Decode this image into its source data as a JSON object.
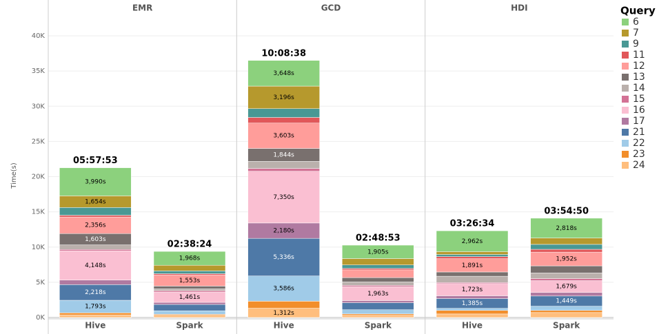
{
  "chart_data": {
    "type": "bar",
    "stacked": true,
    "ylabel": "Time(s)",
    "legend_title": "Query",
    "legend_position": "right",
    "grid": true,
    "ylim": [
      0,
      44600
    ],
    "yticks": [
      {
        "value": 0,
        "label": "0K"
      },
      {
        "value": 5000,
        "label": "5K"
      },
      {
        "value": 10000,
        "label": "10K"
      },
      {
        "value": 15000,
        "label": "15K"
      },
      {
        "value": 20000,
        "label": "20K"
      },
      {
        "value": 25000,
        "label": "25K"
      },
      {
        "value": 30000,
        "label": "30K"
      },
      {
        "value": 35000,
        "label": "35K"
      },
      {
        "value": 40000,
        "label": "40K"
      }
    ],
    "series": [
      {
        "name": "6",
        "color": "#8cd17d"
      },
      {
        "name": "7",
        "color": "#b6992d"
      },
      {
        "name": "9",
        "color": "#499894"
      },
      {
        "name": "11",
        "color": "#e15759"
      },
      {
        "name": "12",
        "color": "#ff9d9a"
      },
      {
        "name": "13",
        "color": "#79706e"
      },
      {
        "name": "14",
        "color": "#bab0ac"
      },
      {
        "name": "15",
        "color": "#d37295"
      },
      {
        "name": "16",
        "color": "#fabfd2"
      },
      {
        "name": "17",
        "color": "#b07aa1"
      },
      {
        "name": "21",
        "color": "#4e79a7"
      },
      {
        "name": "22",
        "color": "#a0cbe8"
      },
      {
        "name": "23",
        "color": "#f28e2b"
      },
      {
        "name": "24",
        "color": "#ffbe7d"
      }
    ],
    "facets": [
      {
        "title": "EMR",
        "categories": [
          "Hive",
          "Spark"
        ],
        "totals": [
          "05:57:53",
          "02:38:24"
        ],
        "series": [
          {
            "values": [
              3990,
              1968
            ],
            "value_labels": [
              "3,990s",
              "1,968s"
            ]
          },
          {
            "values": [
              1654,
              800
            ],
            "value_labels": [
              "1,654s",
              null
            ]
          },
          {
            "values": [
              1100,
              400
            ],
            "value_labels": [
              null,
              null
            ]
          },
          {
            "values": [
              250,
              200
            ],
            "value_labels": [
              null,
              null
            ]
          },
          {
            "values": [
              2356,
              1553
            ],
            "value_labels": [
              "2,356s",
              "1,553s"
            ]
          },
          {
            "values": [
              1603,
              400
            ],
            "value_labels": [
              "1,603s",
              null
            ]
          },
          {
            "values": [
              650,
              250
            ],
            "value_labels": [
              null,
              null
            ]
          },
          {
            "values": [
              200,
              200
            ],
            "value_labels": [
              null,
              null
            ]
          },
          {
            "values": [
              4148,
              1461
            ],
            "value_labels": [
              "4,148s",
              "1,461s"
            ]
          },
          {
            "values": [
              650,
              300
            ],
            "value_labels": [
              null,
              null
            ]
          },
          {
            "values": [
              2218,
              900
            ],
            "value_labels": [
              "2,218s",
              null
            ]
          },
          {
            "values": [
              1793,
              500
            ],
            "value_labels": [
              "1,793s",
              null
            ]
          },
          {
            "values": [
              300,
              150
            ],
            "value_labels": [
              null,
              null
            ]
          },
          {
            "values": [
              350,
              300
            ],
            "value_labels": [
              null,
              null
            ]
          }
        ]
      },
      {
        "title": "GCD",
        "categories": [
          "Hive",
          "Spark"
        ],
        "totals": [
          "10:08:38",
          "02:48:53"
        ],
        "series": [
          {
            "values": [
              3648,
              1905
            ],
            "value_labels": [
              "3,648s",
              "1,905s"
            ]
          },
          {
            "values": [
              3196,
              900
            ],
            "value_labels": [
              "3,196s",
              null
            ]
          },
          {
            "values": [
              1250,
              500
            ],
            "value_labels": [
              null,
              null
            ]
          },
          {
            "values": [
              800,
              200
            ],
            "value_labels": [
              null,
              null
            ]
          },
          {
            "values": [
              3603,
              1100
            ],
            "value_labels": [
              "3,603s",
              null
            ]
          },
          {
            "values": [
              1844,
              600
            ],
            "value_labels": [
              "1,844s",
              null
            ]
          },
          {
            "values": [
              1000,
              500
            ],
            "value_labels": [
              null,
              null
            ]
          },
          {
            "values": [
              400,
              200
            ],
            "value_labels": [
              null,
              null
            ]
          },
          {
            "values": [
              7350,
              1963
            ],
            "value_labels": [
              "7,350s",
              "1,963s"
            ]
          },
          {
            "values": [
              2180,
              300
            ],
            "value_labels": [
              "2,180s",
              null
            ]
          },
          {
            "values": [
              5336,
              1000
            ],
            "value_labels": [
              "5,336s",
              null
            ]
          },
          {
            "values": [
              3586,
              600
            ],
            "value_labels": [
              "3,586s",
              null
            ]
          },
          {
            "values": [
              1000,
              200
            ],
            "value_labels": [
              null,
              null
            ]
          },
          {
            "values": [
              1312,
              300
            ],
            "value_labels": [
              "1,312s",
              null
            ]
          }
        ]
      },
      {
        "title": "HDI",
        "categories": [
          "Hive",
          "Spark"
        ],
        "totals": [
          "03:26:34",
          "03:54:50"
        ],
        "series": [
          {
            "values": [
              2962,
              2818
            ],
            "value_labels": [
              "2,962s",
              "2,818s"
            ]
          },
          {
            "values": [
              400,
              900
            ],
            "value_labels": [
              null,
              null
            ]
          },
          {
            "values": [
              300,
              700
            ],
            "value_labels": [
              null,
              null
            ]
          },
          {
            "values": [
              300,
              400
            ],
            "value_labels": [
              null,
              null
            ]
          },
          {
            "values": [
              1891,
              1952
            ],
            "value_labels": [
              "1,891s",
              "1,952s"
            ]
          },
          {
            "values": [
              600,
              1000
            ],
            "value_labels": [
              null,
              null
            ]
          },
          {
            "values": [
              900,
              800
            ],
            "value_labels": [
              null,
              null
            ]
          },
          {
            "values": [
              150,
              300
            ],
            "value_labels": [
              null,
              null
            ]
          },
          {
            "values": [
              1723,
              1679
            ],
            "value_labels": [
              "1,723s",
              "1,679s"
            ]
          },
          {
            "values": [
              400,
              500
            ],
            "value_labels": [
              null,
              null
            ]
          },
          {
            "values": [
              1385,
              1449
            ],
            "value_labels": [
              "1,385s",
              "1,449s"
            ]
          },
          {
            "values": [
              300,
              600
            ],
            "value_labels": [
              null,
              null
            ]
          },
          {
            "values": [
              500,
              300
            ],
            "value_labels": [
              null,
              null
            ]
          },
          {
            "values": [
              500,
              700
            ],
            "value_labels": [
              null,
              null
            ]
          }
        ]
      }
    ]
  }
}
